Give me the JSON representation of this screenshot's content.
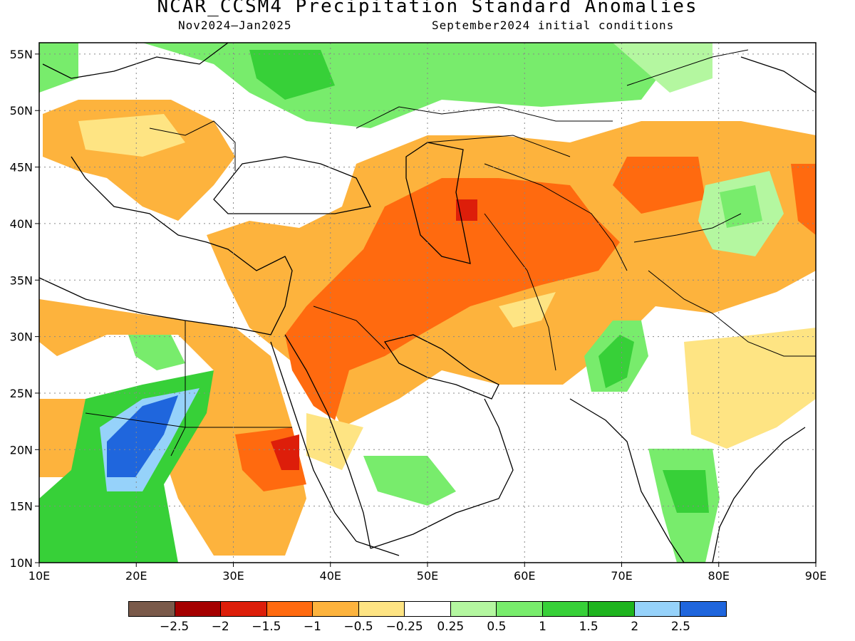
{
  "header": {
    "title": "NCAR_CCSM4 Precipitation Standard Anomalies",
    "period": "Nov2024–Jan2025",
    "init": "September2024 initial conditions"
  },
  "map": {
    "lon_range": [
      10,
      90
    ],
    "lat_range": [
      10,
      56
    ],
    "lon_ticks": [
      "10E",
      "20E",
      "30E",
      "40E",
      "50E",
      "60E",
      "70E",
      "80E",
      "90E"
    ],
    "lat_ticks": [
      "10N",
      "15N",
      "20N",
      "25N",
      "30N",
      "35N",
      "40N",
      "45N",
      "50N",
      "55N"
    ],
    "grid": "dotted"
  },
  "legend": {
    "colors": [
      "#7a5a4a",
      "#a50000",
      "#dd1e0a",
      "#ff6a0f",
      "#fdb33d",
      "#fee483",
      "#ffffff",
      "#b4f7a0",
      "#78ec6c",
      "#37d038",
      "#1eb41e",
      "#96d2fa",
      "#1f66dd"
    ],
    "labels": [
      "−2.5",
      "−2",
      "−1.5",
      "−1",
      "−0.5",
      "−0.25",
      "0.25",
      "0.5",
      "1",
      "1.5",
      "2",
      "2.5"
    ]
  }
}
